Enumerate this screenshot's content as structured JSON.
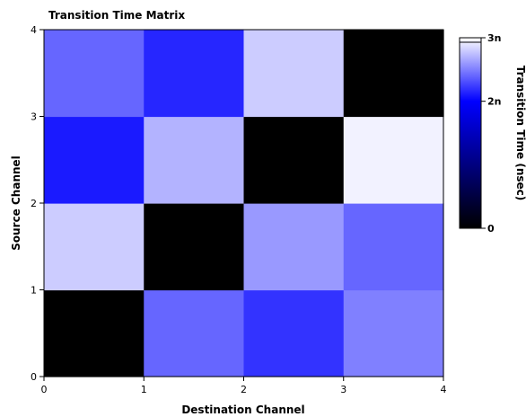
{
  "chart_data": {
    "type": "heatmap",
    "title": "Transition Time Matrix",
    "xlabel": "Destination Channel",
    "ylabel": "Source Channel",
    "x_ticks": [
      "0",
      "1",
      "2",
      "3",
      "4"
    ],
    "y_ticks": [
      "0",
      "1",
      "2",
      "3",
      "4"
    ],
    "xlim": [
      0,
      4
    ],
    "ylim": [
      0,
      4
    ],
    "grid": false,
    "colorbar": {
      "label": "Transition Time (nsec)",
      "range": [
        0,
        3
      ],
      "ticks": [
        {
          "value": 0,
          "label": "0"
        },
        {
          "value": 2,
          "label": "2n"
        },
        {
          "value": 3,
          "label": "3n"
        }
      ],
      "stops": [
        {
          "value": 0,
          "color": "#000000"
        },
        {
          "value": 2,
          "color": "#0000ff"
        },
        {
          "value": 3,
          "color": "#ffffff"
        }
      ]
    },
    "rows_source": [
      "0",
      "1",
      "2",
      "3"
    ],
    "cols_destination": [
      "0",
      "1",
      "2",
      "3"
    ],
    "values_nsec": [
      [
        0.0,
        2.4,
        2.2,
        2.5
      ],
      [
        2.8,
        0.0,
        2.6,
        2.4
      ],
      [
        2.1,
        2.7,
        0.0,
        2.95
      ],
      [
        2.4,
        2.15,
        2.8,
        0.0
      ]
    ]
  }
}
